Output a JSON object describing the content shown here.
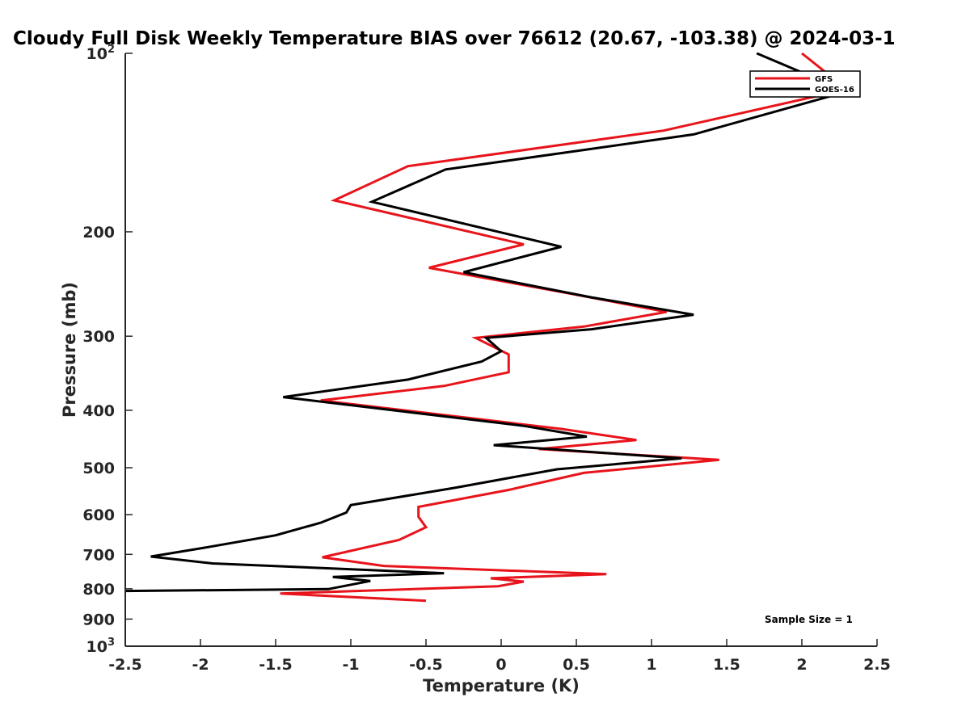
{
  "chart_data": {
    "type": "line",
    "title": "Cloudy Full Disk Weekly Temperature BIAS over 76612 (20.67, -103.38) @ 2024-03-1",
    "xlabel": "Temperature (K)",
    "ylabel": "Pressure (mb)",
    "xlim": [
      -2.5,
      2.5
    ],
    "ylim": [
      100,
      1000
    ],
    "y_scale": "log",
    "y_reversed": true,
    "x_ticks": [
      "-2.5",
      "-2",
      "-1.5",
      "-1",
      "-0.5",
      "0",
      "0.5",
      "1",
      "1.5",
      "2",
      "2.5"
    ],
    "x_tick_values": [
      -2.5,
      -2,
      -1.5,
      -1,
      -0.5,
      0,
      0.5,
      1,
      1.5,
      2,
      2.5
    ],
    "y_ticks": [
      {
        "value": 100,
        "label": "10",
        "exp": "2"
      },
      {
        "value": 200,
        "label": "200"
      },
      {
        "value": 300,
        "label": "300"
      },
      {
        "value": 400,
        "label": "400"
      },
      {
        "value": 500,
        "label": "500"
      },
      {
        "value": 600,
        "label": "600"
      },
      {
        "value": 700,
        "label": "700"
      },
      {
        "value": 800,
        "label": "800"
      },
      {
        "value": 900,
        "label": "900"
      },
      {
        "value": 1000,
        "label": "10",
        "exp": "3"
      }
    ],
    "legend": {
      "location": "top-right",
      "entries": [
        "GFS",
        "GOES-16"
      ]
    },
    "annotation": "Sample Size = 1",
    "series": [
      {
        "name": "GFS",
        "color": "#e8141b",
        "points": [
          [
            2.0,
            100
          ],
          [
            2.3,
            115
          ],
          [
            1.08,
            135
          ],
          [
            -0.62,
            155
          ],
          [
            -1.11,
            177
          ],
          [
            0.15,
            210
          ],
          [
            -0.48,
            230
          ],
          [
            0.45,
            254
          ],
          [
            1.1,
            273
          ],
          [
            0.55,
            289
          ],
          [
            -0.17,
            302
          ],
          [
            0.05,
            322
          ],
          [
            0.05,
            345
          ],
          [
            -0.38,
            364
          ],
          [
            -1.2,
            385
          ],
          [
            0.4,
            430
          ],
          [
            0.9,
            449
          ],
          [
            0.25,
            465
          ],
          [
            1.45,
            485
          ],
          [
            0.55,
            510
          ],
          [
            0.05,
            545
          ],
          [
            -0.55,
            582
          ],
          [
            -0.55,
            605
          ],
          [
            -0.5,
            630
          ],
          [
            -0.68,
            662
          ],
          [
            -1.19,
            708
          ],
          [
            -0.78,
            732
          ],
          [
            0.7,
            756
          ],
          [
            -0.07,
            768
          ],
          [
            0.15,
            778
          ],
          [
            -0.02,
            792
          ],
          [
            -1.47,
            815
          ],
          [
            -0.5,
            838
          ]
        ]
      },
      {
        "name": "GOES-16",
        "color": "#000000",
        "points": [
          [
            1.7,
            100
          ],
          [
            2.3,
            116
          ],
          [
            1.28,
            137
          ],
          [
            -0.37,
            157
          ],
          [
            -0.86,
            178
          ],
          [
            0.4,
            212
          ],
          [
            -0.25,
            234
          ],
          [
            0.6,
            258
          ],
          [
            1.28,
            276
          ],
          [
            0.6,
            292
          ],
          [
            -0.1,
            302
          ],
          [
            0.0,
            318
          ],
          [
            -0.13,
            331
          ],
          [
            -0.62,
            355
          ],
          [
            -1.45,
            380
          ],
          [
            0.15,
            425
          ],
          [
            0.57,
            443
          ],
          [
            -0.05,
            458
          ],
          [
            1.2,
            482
          ],
          [
            0.37,
            503
          ],
          [
            -0.3,
            540
          ],
          [
            -1.0,
            578
          ],
          [
            -1.03,
            595
          ],
          [
            -1.2,
            619
          ],
          [
            -1.5,
            650
          ],
          [
            -2.0,
            684
          ],
          [
            -2.33,
            706
          ],
          [
            -1.92,
            725
          ],
          [
            -0.38,
            753
          ],
          [
            -1.12,
            764
          ],
          [
            -0.87,
            776
          ],
          [
            -1.15,
            801
          ],
          [
            -2.5,
            807
          ]
        ]
      }
    ]
  }
}
